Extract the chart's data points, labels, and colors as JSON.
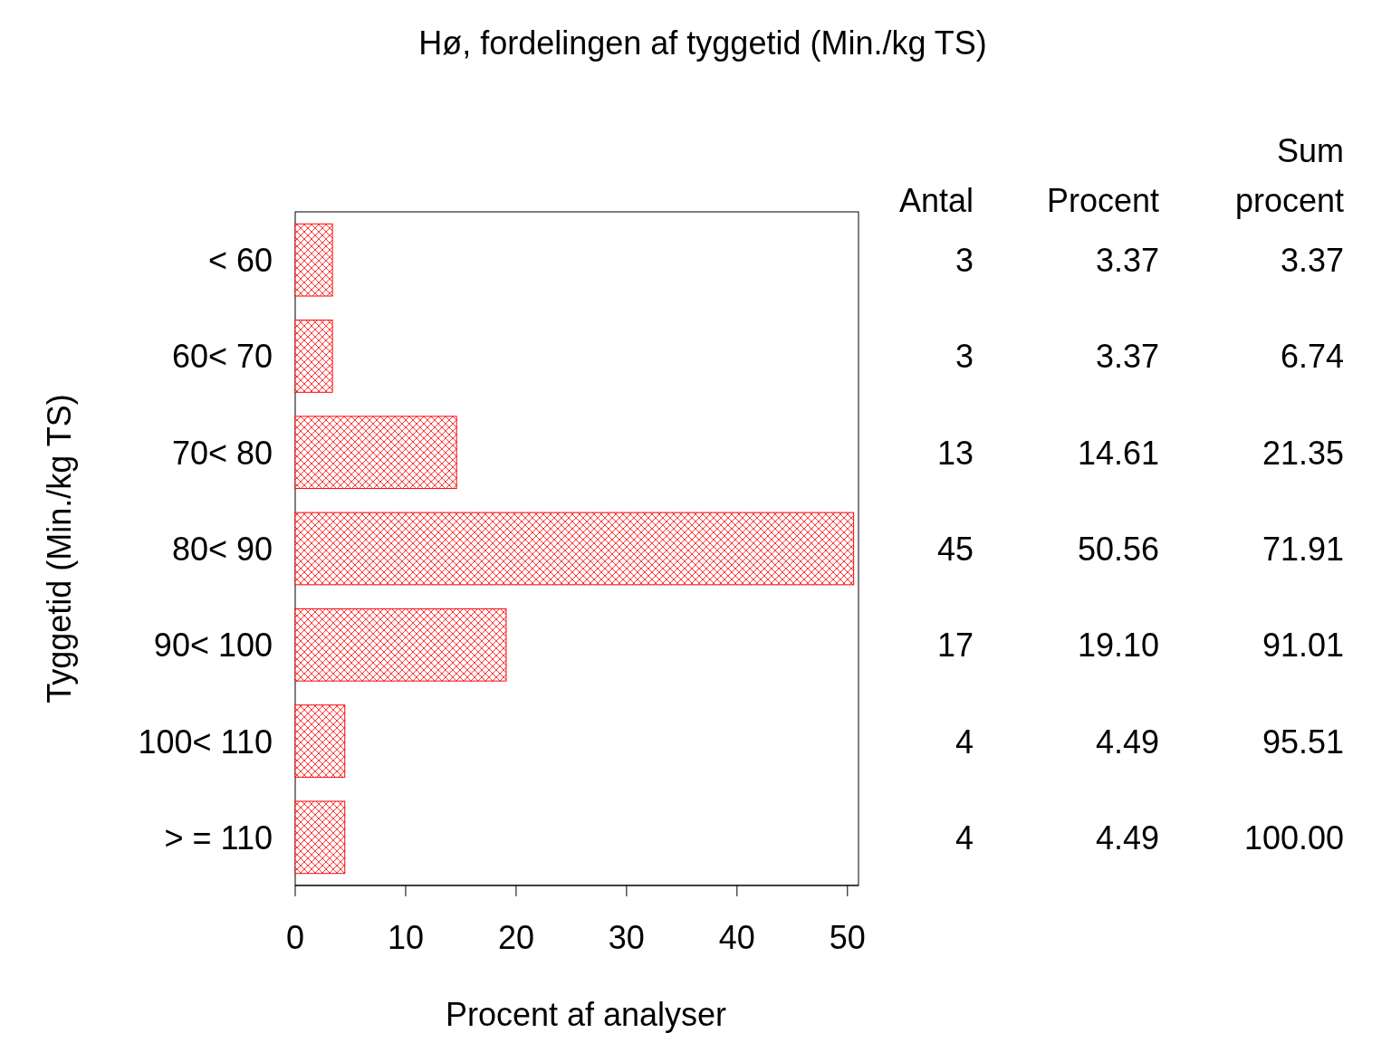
{
  "chart_data": {
    "type": "bar",
    "orientation": "horizontal",
    "title": "Hø, fordelingen af tyggetid (Min./kg TS)",
    "xlabel": "Procent af analyser",
    "ylabel": "Tyggetid (Min./kg TS)",
    "categories": [
      "< 60",
      "60< 70",
      "70< 80",
      "80< 90",
      "90< 100",
      "100< 110",
      "> = 110"
    ],
    "values": [
      3.37,
      3.37,
      14.61,
      50.56,
      19.1,
      4.49,
      4.49
    ],
    "value_labels": [
      "3.37",
      "3.37",
      "14.61",
      "50.56",
      "19.10",
      "4.49",
      "4.49"
    ],
    "color": "#ff0000",
    "xlim": [
      0,
      51
    ],
    "xticks": [
      0,
      10,
      20,
      30,
      40,
      50
    ],
    "annotations": [
      "Antal",
      "Procent",
      "Sum procent",
      "3",
      "3",
      "13",
      "45",
      "17",
      "4",
      "4",
      "3.37",
      "6.74",
      "21.35",
      "71.91",
      "91.01",
      "95.51",
      "100.00"
    ]
  }
}
